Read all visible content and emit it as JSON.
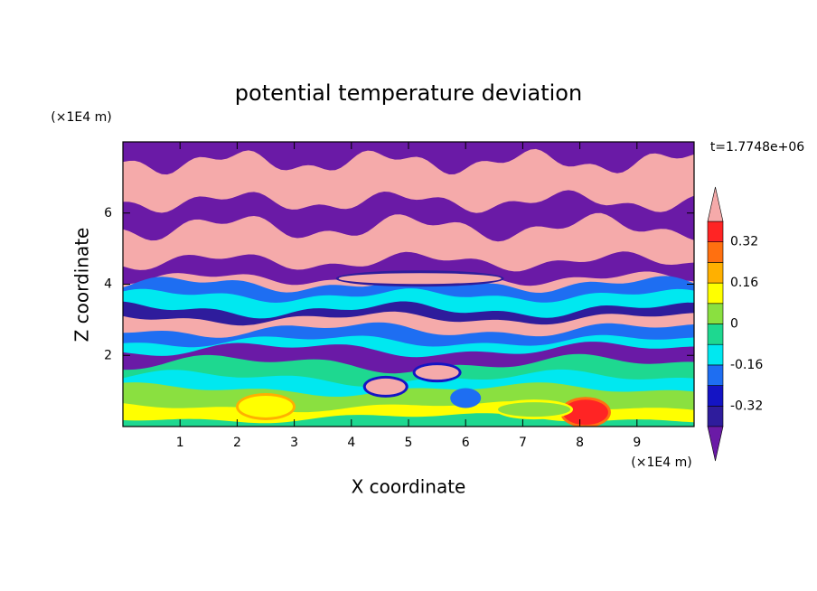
{
  "chart_data": {
    "type": "contour",
    "title": "potential temperature deviation",
    "xlabel": "X coordinate",
    "ylabel": "Z coordinate",
    "xunit": "(×1E4 m)",
    "yunit": "(×1E4 m)",
    "annotation": "t=1.7748e+06",
    "xlim": [
      0,
      10
    ],
    "ylim": [
      0,
      8
    ],
    "xticks": [
      1,
      2,
      3,
      4,
      5,
      6,
      7,
      8,
      9
    ],
    "yticks": [
      2,
      4,
      6
    ],
    "colorbar": {
      "levels": [
        -0.4,
        -0.32,
        -0.24,
        -0.16,
        -0.08,
        0,
        0.08,
        0.16,
        0.24,
        0.32,
        0.4
      ],
      "colors": [
        "#6a1aa6",
        "#2e1c9c",
        "#1414c4",
        "#1e6ef2",
        "#00e8f0",
        "#1ed890",
        "#8ae040",
        "#ffff00",
        "#ffb000",
        "#ff7010",
        "#ff2424",
        "#f5aaaa"
      ],
      "ticks": [
        0.32,
        0.16,
        0,
        -0.16,
        -0.32
      ],
      "extend": "both"
    }
  }
}
